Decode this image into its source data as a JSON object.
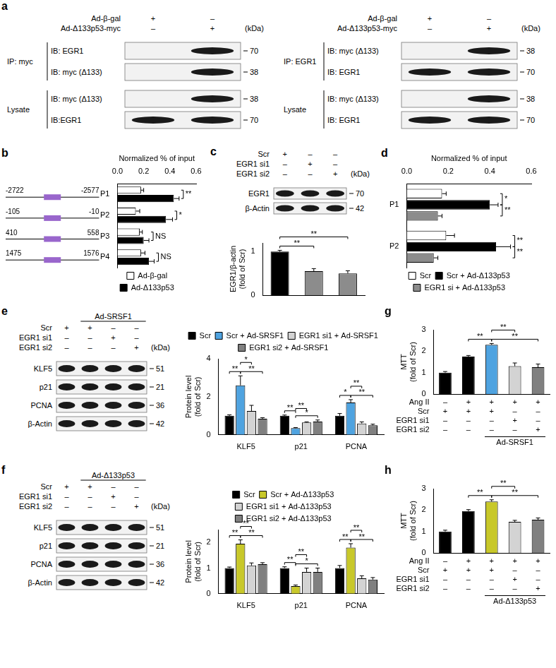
{
  "blots": [
    {
      "panel": "a",
      "unit": "(kDa)",
      "header": [
        {
          "label": "Ad-β-gal",
          "signs": [
            "+",
            "–"
          ]
        },
        {
          "label": "Ad-Δ133p53-myc",
          "signs": [
            "–",
            "+"
          ]
        }
      ],
      "sections": [
        {
          "label": "IP: myc",
          "rows": [
            {
              "label": "IB: EGR1",
              "kda": 70,
              "bands": [
                false,
                true
              ]
            },
            {
              "label": "IB: myc (Δ133)",
              "kda": 38,
              "bands": [
                false,
                true
              ]
            }
          ]
        },
        {
          "label": "Lysate",
          "rows": [
            {
              "label": "IB: myc (Δ133)",
              "kda": 38,
              "bands": [
                false,
                true
              ]
            },
            {
              "label": "IB:EGR1",
              "kda": 70,
              "bands": [
                true,
                true
              ]
            }
          ]
        }
      ]
    },
    {
      "unit": "(kDa)",
      "header": [
        {
          "label": "Ad-β-gal",
          "signs": [
            "+",
            "–"
          ]
        },
        {
          "label": "Ad-Δ133p53-myc",
          "signs": [
            "–",
            "+"
          ]
        }
      ],
      "sections": [
        {
          "label": "IP: EGR1",
          "rows": [
            {
              "label": "IB: myc (Δ133)",
              "kda": 38,
              "bands": [
                false,
                true
              ]
            },
            {
              "label": "IB: EGR1",
              "kda": 70,
              "bands": [
                true,
                true
              ]
            }
          ]
        },
        {
          "label": "Lysate",
          "rows": [
            {
              "label": "IB: myc (Δ133)",
              "kda": 38,
              "bands": [
                false,
                true
              ]
            },
            {
              "label": "IB: EGR1",
              "kda": 70,
              "bands": [
                true,
                true
              ]
            }
          ]
        }
      ]
    },
    {
      "panel": "c",
      "unit": "(kDa)",
      "header": [
        {
          "label": "Scr",
          "signs": [
            "+",
            "–",
            "–"
          ]
        },
        {
          "label": "EGR1 si1",
          "signs": [
            "–",
            "+",
            "–"
          ]
        },
        {
          "label": "EGR1 si2",
          "signs": [
            "–",
            "–",
            "+"
          ]
        }
      ],
      "rows": [
        {
          "label": "EGR1",
          "kda": 70
        },
        {
          "label": "β-Actin",
          "kda": 42
        }
      ]
    },
    {
      "panel": "e",
      "unit": "(kDa)",
      "group": {
        "label": "Ad-SRSF1",
        "lanes": [
          false,
          true,
          true,
          true
        ]
      },
      "header": [
        {
          "label": "Scr",
          "signs": [
            "+",
            "+",
            "–",
            "–"
          ]
        },
        {
          "label": "EGR1 si1",
          "signs": [
            "–",
            "–",
            "+",
            "–"
          ]
        },
        {
          "label": "EGR1 si2",
          "signs": [
            "–",
            "–",
            "–",
            "+"
          ]
        }
      ],
      "rows": [
        {
          "label": "KLF5",
          "kda": 51
        },
        {
          "label": "p21",
          "kda": 21
        },
        {
          "label": "PCNA",
          "kda": 36
        },
        {
          "label": "β-Actin",
          "kda": 42
        }
      ]
    },
    {
      "panel": "f",
      "unit": "(kDa)",
      "group": {
        "label": "Ad-Δ133p53",
        "lanes": [
          false,
          true,
          true,
          true
        ]
      },
      "header": [
        {
          "label": "Scr",
          "signs": [
            "+",
            "+",
            "–",
            "–"
          ]
        },
        {
          "label": "EGR1 si1",
          "signs": [
            "–",
            "–",
            "+",
            "–"
          ]
        },
        {
          "label": "EGR1 si2",
          "signs": [
            "–",
            "–",
            "–",
            "+"
          ]
        }
      ],
      "rows": [
        {
          "label": "KLF5",
          "kda": 51
        },
        {
          "label": "p21",
          "kda": 21
        },
        {
          "label": "PCNA",
          "kda": 36
        },
        {
          "label": "β-Actin",
          "kda": 42
        }
      ]
    }
  ],
  "chart_data": [
    {
      "panel": "b",
      "type": "bar",
      "orientation": "horizontal",
      "grid": false,
      "legend": "bottom",
      "x_label": "Normalized % of input",
      "categories": [
        "P1",
        "P2",
        "P3",
        "P4"
      ],
      "regions": {
        "color": "#9966cc",
        "ranges": [
          [
            -2722,
            -2577
          ],
          [
            -105,
            -10
          ],
          [
            410,
            558
          ],
          [
            1475,
            1576
          ]
        ]
      },
      "series": [
        {
          "name": "Ad-β-gal",
          "color": "#ffffff",
          "values": [
            0.18,
            0.14,
            0.17,
            0.18
          ],
          "errors": [
            0.02,
            0.03,
            0.02,
            0.03
          ]
        },
        {
          "name": "Ad-Δ133p53",
          "color": "#000000",
          "values": [
            0.43,
            0.37,
            0.2,
            0.24
          ],
          "errors": [
            0.04,
            0.05,
            0.04,
            0.04
          ]
        }
      ],
      "xlim": [
        0,
        0.6
      ],
      "xticks": [
        {
          "value": 0,
          "label": "0.0"
        },
        {
          "value": 0.2,
          "label": "0.2"
        },
        {
          "value": 0.4,
          "label": "0.4"
        },
        {
          "value": 0.6,
          "label": "0.6"
        }
      ],
      "significance": [
        {
          "category": "P1",
          "between": [
            0,
            1
          ],
          "label": "**"
        },
        {
          "category": "P2",
          "between": [
            0,
            1
          ],
          "label": "*"
        },
        {
          "category": "P3",
          "between": [
            0,
            1
          ],
          "label": "NS"
        },
        {
          "category": "P4",
          "between": [
            0,
            1
          ],
          "label": "NS"
        }
      ]
    },
    {
      "panel": "c",
      "type": "bar",
      "grid": false,
      "tick_labels": "y",
      "y_label": [
        "EGR1/β-actin",
        "(fold of Scr)"
      ],
      "categories": [
        null,
        null,
        null
      ],
      "values": [
        1.0,
        0.55,
        0.5
      ],
      "errors": [
        0.03,
        0.06,
        0.06
      ],
      "colors": [
        "#000000",
        "#8c8c8c",
        "#8c8c8c"
      ],
      "ylim": [
        0,
        1.2
      ],
      "yticks": [
        0,
        1
      ],
      "significance": [
        {
          "between": [
            0,
            1
          ],
          "label": "**"
        },
        {
          "between": [
            0,
            2
          ],
          "label": "**"
        }
      ]
    },
    {
      "panel": "d",
      "type": "bar",
      "orientation": "horizontal",
      "grid": false,
      "legend": "bottom",
      "x_label": "Normalized % of input",
      "categories": [
        "P1",
        "P2"
      ],
      "series": [
        {
          "name": "Scr",
          "color": "#ffffff",
          "values": [
            0.17,
            0.19
          ],
          "errors": [
            0.02,
            0.04
          ]
        },
        {
          "name": "Scr + Ad-Δ133p53",
          "color": "#000000",
          "values": [
            0.4,
            0.43
          ],
          "errors": [
            0.04,
            0.07
          ]
        },
        {
          "name": "EGR1 si + Ad-Δ133p53",
          "color": "#8c8c8c",
          "values": [
            0.15,
            0.13
          ],
          "errors": [
            0.02,
            0.02
          ]
        }
      ],
      "xlim": [
        0,
        0.6
      ],
      "xticks": [
        {
          "value": 0,
          "label": "0.0"
        },
        {
          "value": 0.2,
          "label": "0.2"
        },
        {
          "value": 0.4,
          "label": "0.4"
        },
        {
          "value": 0.6,
          "label": "0.6"
        }
      ],
      "significance": [
        {
          "category": "P1",
          "between": [
            0,
            1
          ],
          "label": "*"
        },
        {
          "category": "P1",
          "between": [
            1,
            2
          ],
          "label": "**"
        },
        {
          "category": "P2",
          "between": [
            0,
            1
          ],
          "label": "**"
        },
        {
          "category": "P2",
          "between": [
            1,
            2
          ],
          "label": "**"
        }
      ]
    },
    {
      "panel": "e",
      "type": "bar",
      "grid": false,
      "legend": "top",
      "y_label": [
        "Protein level",
        "(fold of Scr)"
      ],
      "categories": [
        "KLF5",
        "p21",
        "PCNA"
      ],
      "series": [
        {
          "name": "Scr",
          "color": "#000000",
          "values": [
            1.0,
            1.0,
            1.0
          ],
          "errors": [
            0.05,
            0.04,
            0.12
          ]
        },
        {
          "name": "Scr + Ad-SRSF1",
          "color": "#4fa3e0",
          "values": [
            2.6,
            0.35,
            1.7
          ],
          "errors": [
            0.5,
            0.03,
            0.15
          ]
        },
        {
          "name": "EGR1 si1 + Ad-SRSF1",
          "color": "#d3d3d3",
          "values": [
            1.25,
            0.65,
            0.6
          ],
          "errors": [
            0.3,
            0.03,
            0.08
          ]
        },
        {
          "name": "EGR1 si2 + Ad-SRSF1",
          "color": "#808080",
          "values": [
            0.85,
            0.7,
            0.5
          ],
          "errors": [
            0.05,
            0.08,
            0.06
          ]
        }
      ],
      "ylim": [
        0,
        4
      ],
      "yticks": [
        0,
        2,
        4
      ],
      "significance": [
        {
          "category": "KLF5",
          "between": [
            0,
            1
          ],
          "label": "**"
        },
        {
          "category": "KLF5",
          "between": [
            1,
            3
          ],
          "label": "**"
        },
        {
          "category": "KLF5",
          "between": [
            1,
            2
          ],
          "label": "*"
        },
        {
          "category": "p21",
          "between": [
            0,
            1
          ],
          "label": "**"
        },
        {
          "category": "p21",
          "between": [
            1,
            3
          ],
          "label": "*"
        },
        {
          "category": "p21",
          "between": [
            1,
            2
          ],
          "label": "**"
        },
        {
          "category": "PCNA",
          "between": [
            0,
            1
          ],
          "label": "*"
        },
        {
          "category": "PCNA",
          "between": [
            1,
            3
          ],
          "label": "**"
        },
        {
          "category": "PCNA",
          "between": [
            1,
            2
          ],
          "label": "**"
        }
      ]
    },
    {
      "panel": "f",
      "type": "bar",
      "grid": false,
      "legend": "top",
      "y_label": [
        "Protein level",
        "(fold of Scr)"
      ],
      "categories": [
        "KLF5",
        "p21",
        "PCNA"
      ],
      "series": [
        {
          "name": "Scr",
          "color": "#000000",
          "values": [
            1.0,
            1.0,
            1.0
          ],
          "errors": [
            0.04,
            0.05,
            0.1
          ]
        },
        {
          "name": "Scr + Ad-Δ133p53",
          "color": "#c8c82a",
          "values": [
            1.95,
            0.3,
            1.8
          ],
          "errors": [
            0.15,
            0.04,
            0.15
          ]
        },
        {
          "name": "EGR1 si1 + Ad-Δ133p53",
          "color": "#d3d3d3",
          "values": [
            1.1,
            0.85,
            0.6
          ],
          "errors": [
            0.1,
            0.15,
            0.1
          ]
        },
        {
          "name": "EGR1 si2 + Ad-Δ133p53",
          "color": "#808080",
          "values": [
            1.15,
            0.85,
            0.55
          ],
          "errors": [
            0.06,
            0.15,
            0.08
          ]
        }
      ],
      "ylim": [
        0,
        2.5
      ],
      "yticks": [
        0,
        1,
        2
      ],
      "significance": [
        {
          "category": "KLF5",
          "between": [
            0,
            1
          ],
          "label": "**"
        },
        {
          "category": "KLF5",
          "between": [
            1,
            3
          ],
          "label": "**"
        },
        {
          "category": "KLF5",
          "between": [
            1,
            2
          ],
          "label": "**"
        },
        {
          "category": "p21",
          "between": [
            0,
            1
          ],
          "label": "**"
        },
        {
          "category": "p21",
          "between": [
            1,
            3
          ],
          "label": "*"
        },
        {
          "category": "p21",
          "between": [
            1,
            2
          ],
          "label": "**"
        },
        {
          "category": "PCNA",
          "between": [
            0,
            1
          ],
          "label": "**"
        },
        {
          "category": "PCNA",
          "between": [
            1,
            3
          ],
          "label": "**"
        },
        {
          "category": "PCNA",
          "between": [
            1,
            2
          ],
          "label": "**"
        }
      ]
    },
    {
      "panel": "g",
      "type": "bar",
      "grid": false,
      "tick_labels": "y",
      "y_label": [
        "MTT",
        "(fold of Scr)"
      ],
      "categories": [
        null,
        null,
        null,
        null,
        null
      ],
      "values": [
        1.0,
        1.75,
        2.3,
        1.3,
        1.25
      ],
      "errors": [
        0.05,
        0.05,
        0.06,
        0.15,
        0.15
      ],
      "colors": [
        "#000000",
        "#000000",
        "#4fa3e0",
        "#d3d3d3",
        "#808080"
      ],
      "ylim": [
        0,
        3
      ],
      "yticks": [
        0,
        1,
        2,
        3
      ],
      "conditions": [
        {
          "label": "Ang II",
          "signs": [
            "–",
            "+",
            "+",
            "+",
            "+"
          ]
        },
        {
          "label": "Scr",
          "signs": [
            "+",
            "+",
            "+",
            "–",
            "–"
          ]
        },
        {
          "label": "EGR1 si1",
          "signs": [
            "–",
            "–",
            "–",
            "+",
            "–"
          ]
        },
        {
          "label": "EGR1 si2",
          "signs": [
            "–",
            "–",
            "–",
            "–",
            "+"
          ]
        }
      ],
      "group": {
        "label": "Ad-SRSF1",
        "lanes": [
          false,
          false,
          true,
          true,
          true
        ]
      },
      "significance": [
        {
          "between": [
            1,
            2
          ],
          "label": "**"
        },
        {
          "between": [
            2,
            4
          ],
          "label": "**"
        },
        {
          "between": [
            2,
            3
          ],
          "label": "**"
        }
      ]
    },
    {
      "panel": "h",
      "type": "bar",
      "grid": false,
      "tick_labels": "y",
      "y_label": [
        "MTT",
        "(fold of Scr)"
      ],
      "categories": [
        null,
        null,
        null,
        null,
        null
      ],
      "values": [
        1.0,
        1.95,
        2.4,
        1.45,
        1.55
      ],
      "errors": [
        0.06,
        0.07,
        0.08,
        0.07,
        0.08
      ],
      "colors": [
        "#000000",
        "#000000",
        "#c8c82a",
        "#d3d3d3",
        "#808080"
      ],
      "ylim": [
        0,
        3
      ],
      "yticks": [
        0,
        1,
        2,
        3
      ],
      "conditions": [
        {
          "label": "Ang II",
          "signs": [
            "–",
            "+",
            "+",
            "+",
            "+"
          ]
        },
        {
          "label": "Scr",
          "signs": [
            "+",
            "+",
            "+",
            "–",
            "–"
          ]
        },
        {
          "label": "EGR1 si1",
          "signs": [
            "–",
            "–",
            "–",
            "+",
            "–"
          ]
        },
        {
          "label": "EGR1 si2",
          "signs": [
            "–",
            "–",
            "–",
            "–",
            "+"
          ]
        }
      ],
      "group": {
        "label": "Ad-Δ133p53",
        "lanes": [
          false,
          false,
          true,
          true,
          true
        ]
      },
      "significance": [
        {
          "between": [
            1,
            2
          ],
          "label": "**"
        },
        {
          "between": [
            2,
            4
          ],
          "label": "**"
        },
        {
          "between": [
            2,
            3
          ],
          "label": "**"
        }
      ]
    }
  ]
}
